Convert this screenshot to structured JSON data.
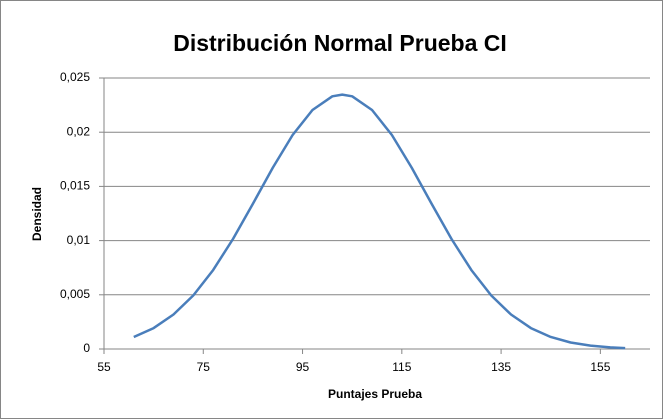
{
  "chart_data": {
    "type": "line",
    "title": "Distribución Normal Prueba CI",
    "x_label": "Puntajes Prueba",
    "y_label": "Densidad",
    "x": [
      61,
      65,
      69,
      73,
      77,
      81,
      85,
      89,
      93,
      97,
      101,
      103,
      105,
      109,
      113,
      117,
      121,
      125,
      129,
      133,
      137,
      141,
      145,
      149,
      153,
      157,
      160
    ],
    "series": [
      {
        "name": "Densidad",
        "color": "#4a7ebb",
        "values": [
          0.00111,
          0.00193,
          0.00318,
          0.00495,
          0.00729,
          0.01016,
          0.0134,
          0.01672,
          0.01974,
          0.02205,
          0.02331,
          0.02347,
          0.02331,
          0.02205,
          0.01974,
          0.01672,
          0.0134,
          0.01016,
          0.00729,
          0.00495,
          0.00318,
          0.00193,
          0.00111,
          0.0006,
          0.00031,
          0.00015,
          8.5e-05
        ]
      }
    ],
    "xlim": [
      55,
      165
    ],
    "xticks": [
      55,
      75,
      95,
      115,
      135,
      155
    ],
    "ylim": [
      0,
      0.025
    ],
    "yticks": [
      0,
      {
        "value": 0.005,
        "label": "0,005"
      },
      {
        "value": 0.01,
        "label": "0,01"
      },
      {
        "value": 0.015,
        "label": "0,015"
      },
      {
        "value": 0.02,
        "label": "0,02"
      },
      {
        "value": 0.025,
        "label": "0,025"
      }
    ],
    "grid": true
  }
}
